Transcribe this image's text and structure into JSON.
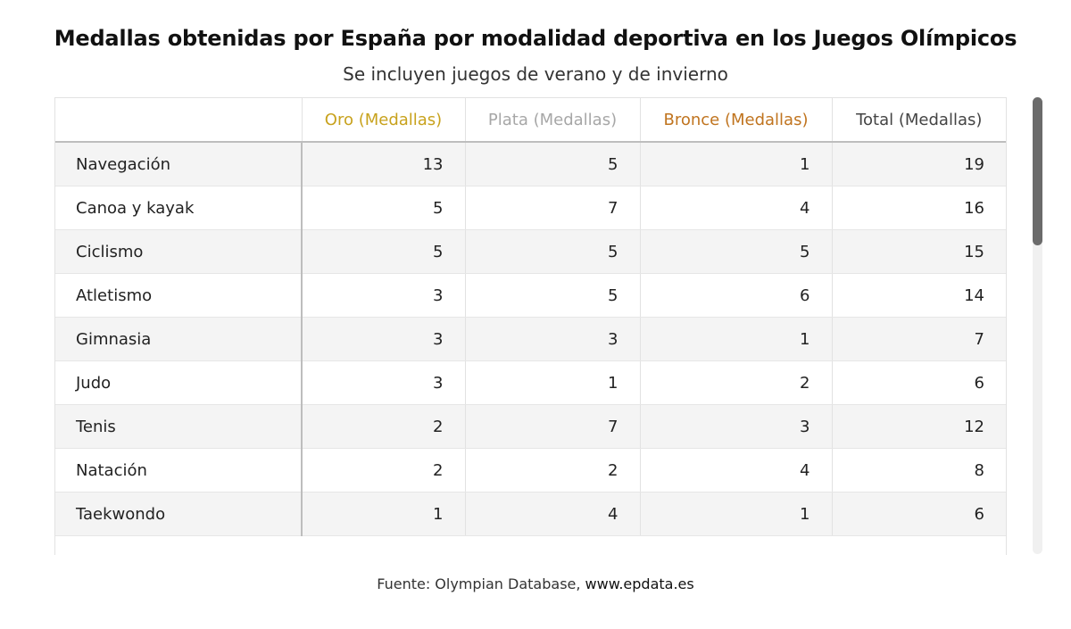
{
  "header": {
    "title": "Medallas obtenidas por España por modalidad deportiva en los Juegos Olímpicos",
    "subtitle": "Se incluyen juegos de verano y de invierno"
  },
  "table": {
    "columns": [
      "",
      "Oro (Medallas)",
      "Plata (Medallas)",
      "Bronce (Medallas)",
      "Total (Medallas)"
    ],
    "rows": [
      [
        "Navegación",
        "13",
        "5",
        "1",
        "19"
      ],
      [
        "Canoa y kayak",
        "5",
        "7",
        "4",
        "16"
      ],
      [
        "Ciclismo",
        "5",
        "5",
        "5",
        "15"
      ],
      [
        "Atletismo",
        "3",
        "5",
        "6",
        "14"
      ],
      [
        "Gimnasia",
        "3",
        "3",
        "1",
        "7"
      ],
      [
        "Judo",
        "3",
        "1",
        "2",
        "6"
      ],
      [
        "Tenis",
        "2",
        "7",
        "3",
        "12"
      ],
      [
        "Natación",
        "2",
        "2",
        "4",
        "8"
      ],
      [
        "Taekwondo",
        "1",
        "4",
        "1",
        "6"
      ]
    ]
  },
  "footer": {
    "source_prefix": "Fuente: Olympian Database, ",
    "source_link": "www.epdata.es"
  },
  "colors": {
    "gold": "#c8a21d",
    "silver": "#a7a7a7",
    "bronze": "#c0741f",
    "scroll_thumb": "#6b6b6b"
  },
  "chart_data": {
    "type": "table",
    "title": "Medallas obtenidas por España por modalidad deportiva en los Juegos Olímpicos",
    "subtitle": "Se incluyen juegos de verano y de invierno",
    "categories": [
      "Navegación",
      "Canoa y kayak",
      "Ciclismo",
      "Atletismo",
      "Gimnasia",
      "Judo",
      "Tenis",
      "Natación",
      "Taekwondo"
    ],
    "series": [
      {
        "name": "Oro (Medallas)",
        "values": [
          13,
          5,
          5,
          3,
          3,
          3,
          2,
          2,
          1
        ]
      },
      {
        "name": "Plata (Medallas)",
        "values": [
          5,
          7,
          5,
          5,
          3,
          1,
          7,
          2,
          4
        ]
      },
      {
        "name": "Bronce (Medallas)",
        "values": [
          1,
          4,
          5,
          6,
          1,
          2,
          3,
          4,
          1
        ]
      },
      {
        "name": "Total (Medallas)",
        "values": [
          19,
          16,
          15,
          14,
          7,
          6,
          12,
          8,
          6
        ]
      }
    ]
  }
}
